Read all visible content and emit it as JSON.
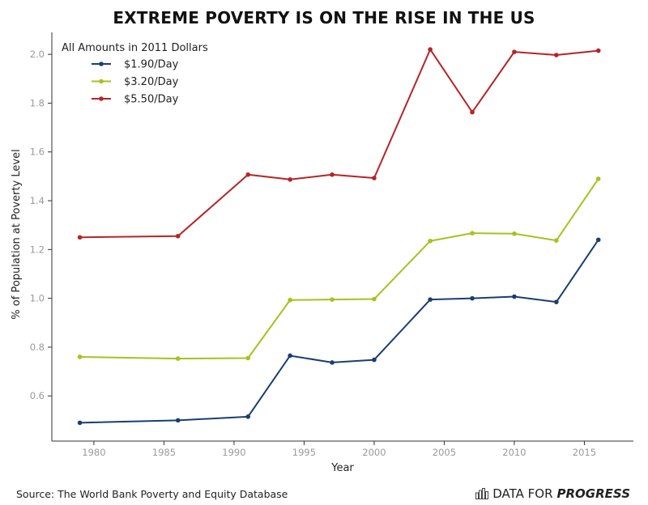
{
  "title": "EXTREME POVERTY IS ON THE RISE IN THE US",
  "source": "Source: The World Bank Poverty and Equity Database",
  "brand": {
    "prefix": "DATA FOR",
    "strong": "PROGRESS",
    "icon": "bar-chart-icon"
  },
  "chart_data": {
    "type": "line",
    "title": "EXTREME POVERTY IS ON THE RISE IN THE US",
    "xlabel": "Year",
    "ylabel": "% of Population at Poverty Level",
    "xlim": [
      1977,
      2018.5
    ],
    "ylim": [
      0.415,
      2.09
    ],
    "xticks": [
      1980,
      1985,
      1990,
      1995,
      2000,
      2005,
      2010,
      2015
    ],
    "yticks": [
      0.6,
      0.8,
      1.0,
      1.2,
      1.4,
      1.6,
      1.8,
      2.0
    ],
    "grid": false,
    "legend": {
      "title": "All Amounts in 2011 Dollars",
      "position": "top-left"
    },
    "x": [
      1979,
      1986,
      1991,
      1994,
      1997,
      2000,
      2004,
      2007,
      2010,
      2013,
      2016
    ],
    "series": [
      {
        "name": "$1.90/Day",
        "color": "#1a3e6f",
        "values": [
          0.49,
          0.5,
          0.515,
          0.765,
          0.737,
          0.748,
          0.995,
          1.0,
          1.007,
          0.985,
          1.24
        ]
      },
      {
        "name": "$3.20/Day",
        "color": "#a6c21e",
        "values": [
          0.76,
          0.753,
          0.755,
          0.993,
          0.995,
          0.997,
          1.235,
          1.267,
          1.265,
          1.237,
          1.49
        ]
      },
      {
        "name": "$5.50/Day",
        "color": "#b52527",
        "values": [
          1.25,
          1.255,
          1.507,
          1.487,
          1.507,
          1.493,
          2.02,
          1.763,
          2.01,
          1.997,
          2.015
        ]
      }
    ]
  }
}
